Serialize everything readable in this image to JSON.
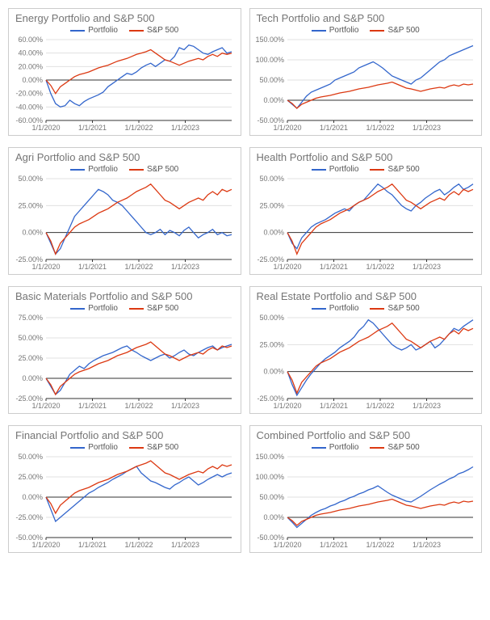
{
  "layout": {
    "rows": 4,
    "cols": 2,
    "panel_border": "#cccccc"
  },
  "legend": {
    "items": [
      {
        "label": "Portfolio",
        "color": "#3366cc"
      },
      {
        "label": "S&P 500",
        "color": "#dc3912"
      }
    ]
  },
  "xaxis": {
    "ticks": [
      "1/1/2020",
      "1/1/2021",
      "1/1/2022",
      "1/1/2023"
    ],
    "positions": [
      0,
      0.25,
      0.5,
      0.75
    ]
  },
  "style": {
    "title_color": "#757575",
    "title_fontsize": 13,
    "tick_color": "#757575",
    "tick_fontsize": 9,
    "grid_color": "#e0e0e0",
    "axis_color": "#333333",
    "line_width": 1.3,
    "background": "#ffffff"
  },
  "charts": [
    {
      "title": "Energy Portfolio and S&P 500",
      "ymin": -60,
      "ymax": 60,
      "ystep": 20,
      "portfolio": [
        0,
        -20,
        -35,
        -40,
        -38,
        -30,
        -35,
        -38,
        -32,
        -28,
        -25,
        -22,
        -18,
        -10,
        -5,
        0,
        5,
        10,
        8,
        12,
        18,
        22,
        25,
        20,
        25,
        30,
        28,
        35,
        48,
        45,
        52,
        50,
        45,
        40,
        38,
        42,
        45,
        48,
        40,
        42
      ],
      "sp500": [
        0,
        -8,
        -20,
        -10,
        -5,
        0,
        5,
        8,
        10,
        12,
        15,
        18,
        20,
        22,
        25,
        28,
        30,
        32,
        35,
        38,
        40,
        42,
        45,
        40,
        35,
        30,
        28,
        25,
        22,
        25,
        28,
        30,
        32,
        30,
        35,
        38,
        35,
        40,
        38,
        40
      ]
    },
    {
      "title": "Tech Portfolio and S&P 500",
      "ymin": -50,
      "ymax": 150,
      "ystep": 50,
      "portfolio": [
        0,
        -10,
        -20,
        -5,
        10,
        20,
        25,
        30,
        35,
        40,
        50,
        55,
        60,
        65,
        70,
        80,
        85,
        90,
        95,
        88,
        80,
        70,
        60,
        55,
        50,
        45,
        40,
        50,
        55,
        65,
        75,
        85,
        95,
        100,
        110,
        115,
        120,
        125,
        130,
        135
      ],
      "sp500": [
        0,
        -8,
        -20,
        -10,
        -5,
        0,
        5,
        8,
        10,
        12,
        15,
        18,
        20,
        22,
        25,
        28,
        30,
        32,
        35,
        38,
        40,
        42,
        45,
        40,
        35,
        30,
        28,
        25,
        22,
        25,
        28,
        30,
        32,
        30,
        35,
        38,
        35,
        40,
        38,
        40
      ]
    },
    {
      "title": "Agri Portfolio and S&P 500",
      "ymin": -25,
      "ymax": 50,
      "ystep": 25,
      "portfolio": [
        0,
        -10,
        -20,
        -15,
        -5,
        5,
        15,
        20,
        25,
        30,
        35,
        40,
        38,
        35,
        30,
        28,
        25,
        20,
        15,
        10,
        5,
        0,
        -2,
        0,
        3,
        -2,
        2,
        0,
        -3,
        2,
        5,
        0,
        -5,
        -2,
        0,
        3,
        -2,
        0,
        -3,
        -2
      ],
      "sp500": [
        0,
        -8,
        -20,
        -10,
        -5,
        0,
        5,
        8,
        10,
        12,
        15,
        18,
        20,
        22,
        25,
        28,
        30,
        32,
        35,
        38,
        40,
        42,
        45,
        40,
        35,
        30,
        28,
        25,
        22,
        25,
        28,
        30,
        32,
        30,
        35,
        38,
        35,
        40,
        38,
        40
      ]
    },
    {
      "title": "Health Portfolio and S&P 500",
      "ymin": -25,
      "ymax": 50,
      "ystep": 25,
      "portfolio": [
        0,
        -10,
        -15,
        -5,
        0,
        5,
        8,
        10,
        12,
        15,
        18,
        20,
        22,
        20,
        25,
        28,
        30,
        35,
        40,
        45,
        42,
        38,
        35,
        30,
        25,
        22,
        20,
        25,
        28,
        32,
        35,
        38,
        40,
        35,
        38,
        42,
        45,
        40,
        42,
        45
      ],
      "sp500": [
        0,
        -8,
        -20,
        -10,
        -5,
        0,
        5,
        8,
        10,
        12,
        15,
        18,
        20,
        22,
        25,
        28,
        30,
        32,
        35,
        38,
        40,
        42,
        45,
        40,
        35,
        30,
        28,
        25,
        22,
        25,
        28,
        30,
        32,
        30,
        35,
        38,
        35,
        40,
        38,
        40
      ]
    },
    {
      "title": "Basic Materials Portfolio and S&P 500",
      "ymin": -25,
      "ymax": 75,
      "ystep": 25,
      "portfolio": [
        0,
        -10,
        -20,
        -15,
        -5,
        5,
        10,
        15,
        12,
        18,
        22,
        25,
        28,
        30,
        32,
        35,
        38,
        40,
        35,
        32,
        28,
        25,
        22,
        25,
        28,
        30,
        25,
        28,
        32,
        35,
        30,
        28,
        32,
        35,
        38,
        40,
        35,
        38,
        40,
        42
      ],
      "sp500": [
        0,
        -8,
        -20,
        -10,
        -5,
        0,
        5,
        8,
        10,
        12,
        15,
        18,
        20,
        22,
        25,
        28,
        30,
        32,
        35,
        38,
        40,
        42,
        45,
        40,
        35,
        30,
        28,
        25,
        22,
        25,
        28,
        30,
        32,
        30,
        35,
        38,
        35,
        40,
        38,
        40
      ]
    },
    {
      "title": "Real Estate Portfolio and S&P 500",
      "ymin": -25,
      "ymax": 50,
      "ystep": 25,
      "portfolio": [
        0,
        -12,
        -22,
        -15,
        -8,
        -2,
        3,
        8,
        12,
        15,
        18,
        22,
        25,
        28,
        32,
        38,
        42,
        48,
        45,
        40,
        35,
        30,
        25,
        22,
        20,
        22,
        25,
        20,
        22,
        25,
        28,
        22,
        25,
        30,
        35,
        40,
        38,
        42,
        45,
        48
      ],
      "sp500": [
        0,
        -8,
        -20,
        -10,
        -5,
        0,
        5,
        8,
        10,
        12,
        15,
        18,
        20,
        22,
        25,
        28,
        30,
        32,
        35,
        38,
        40,
        42,
        45,
        40,
        35,
        30,
        28,
        25,
        22,
        25,
        28,
        30,
        32,
        30,
        35,
        38,
        35,
        40,
        38,
        40
      ]
    },
    {
      "title": "Financial Portfolio and S&P 500",
      "ymin": -50,
      "ymax": 50,
      "ystep": 25,
      "portfolio": [
        0,
        -15,
        -30,
        -25,
        -20,
        -15,
        -10,
        -5,
        0,
        5,
        8,
        12,
        15,
        18,
        22,
        25,
        28,
        32,
        35,
        38,
        30,
        25,
        20,
        18,
        15,
        12,
        10,
        15,
        18,
        22,
        25,
        20,
        15,
        18,
        22,
        25,
        28,
        25,
        28,
        30
      ],
      "sp500": [
        0,
        -8,
        -20,
        -10,
        -5,
        0,
        5,
        8,
        10,
        12,
        15,
        18,
        20,
        22,
        25,
        28,
        30,
        32,
        35,
        38,
        40,
        42,
        45,
        40,
        35,
        30,
        28,
        25,
        22,
        25,
        28,
        30,
        32,
        30,
        35,
        38,
        35,
        40,
        38,
        40
      ]
    },
    {
      "title": "Combined Portfolio and S&P 500",
      "ymin": -50,
      "ymax": 150,
      "ystep": 50,
      "portfolio": [
        0,
        -12,
        -25,
        -15,
        -5,
        5,
        12,
        18,
        22,
        28,
        32,
        38,
        42,
        48,
        52,
        58,
        62,
        68,
        72,
        78,
        70,
        62,
        55,
        50,
        45,
        40,
        38,
        45,
        52,
        60,
        68,
        75,
        82,
        88,
        95,
        100,
        108,
        112,
        118,
        125
      ],
      "sp500": [
        0,
        -8,
        -20,
        -10,
        -5,
        0,
        5,
        8,
        10,
        12,
        15,
        18,
        20,
        22,
        25,
        28,
        30,
        32,
        35,
        38,
        40,
        42,
        45,
        40,
        35,
        30,
        28,
        25,
        22,
        25,
        28,
        30,
        32,
        30,
        35,
        38,
        35,
        40,
        38,
        40
      ]
    }
  ]
}
